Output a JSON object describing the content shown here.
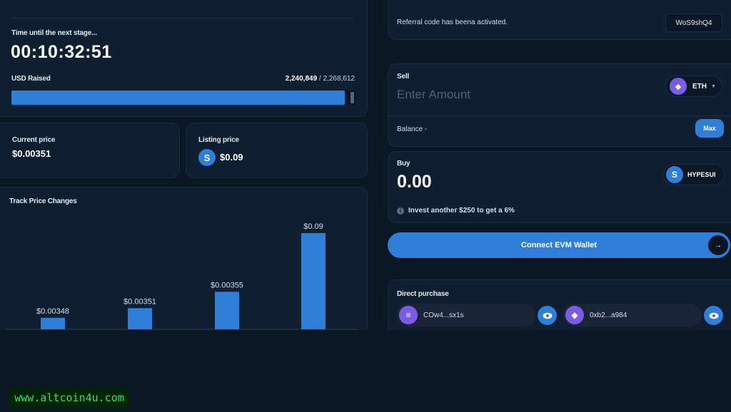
{
  "timer": {
    "label": "Time until the next stage...",
    "value": "00:10:32:51"
  },
  "raised": {
    "label": "USD Raised",
    "current": "2,240,849",
    "separator": " / ",
    "target": "2,268,612",
    "progress": 0.988
  },
  "prices": {
    "current_label": "Current price",
    "current_value": "$0.00351",
    "listing_label": "Listing price",
    "listing_value": "$0.09",
    "listing_icon": "S"
  },
  "chart_data": {
    "type": "bar",
    "title": "Track Price Changes",
    "categories": [
      "",
      "",
      "",
      ""
    ],
    "values": [
      0.00348,
      0.00351,
      0.00355,
      0.09
    ],
    "labels": [
      "$0.00348",
      "$0.00351",
      "$0.00355",
      "$0.09"
    ],
    "bar_heights_rel": [
      0.12,
      0.22,
      0.39,
      1.0
    ],
    "color": "#2f7fd8"
  },
  "referral": {
    "text": "Referral code has beena activated.",
    "code": "WoS9shQ4"
  },
  "sell": {
    "label": "Sell",
    "placeholder": "Enter Amount",
    "token": "ETH",
    "balance_label": "Balance -",
    "max_label": "Max"
  },
  "buy": {
    "label": "Buy",
    "value": "0.00",
    "token": "HYPESUI",
    "token_icon": "S",
    "invest_text": "Invest another $250 to get a  6%",
    "info_icon": "i"
  },
  "connect": {
    "label": "Connect EVM Wallet",
    "arrow": "→"
  },
  "direct": {
    "label": "Direct purchase",
    "wallets": [
      {
        "address": "COw4...sx1s",
        "icon": "solana-icon"
      },
      {
        "address": "0xb2...a984",
        "icon": "ethereum-icon"
      }
    ]
  },
  "watermark": "www.altcoin4u.com",
  "colors": {
    "accent": "#2f7fd8",
    "background": "#0c1726",
    "card": "#0f1e31",
    "eth": "#7c5ce6",
    "watermark_text": "#37e058"
  }
}
